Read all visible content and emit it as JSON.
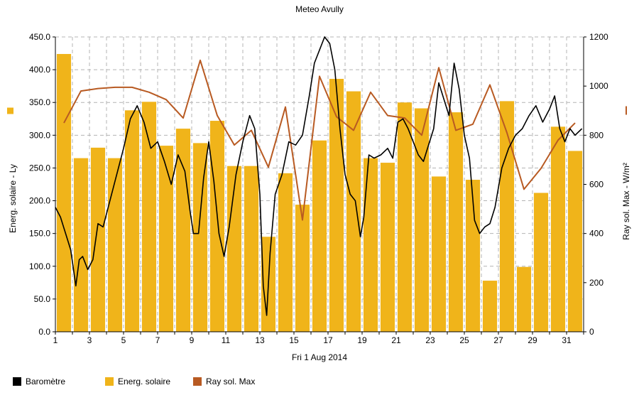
{
  "chart_data": {
    "type": "bar",
    "title": "Meteo  Avully",
    "xlabel": "Fri 1 Aug 2014",
    "ylabel_left": "Energ. solaire - Ly",
    "ylabel_right": "Ray sol. Max - W/m²",
    "ylim_left": [
      0,
      450
    ],
    "ylim_right": [
      0,
      1200
    ],
    "y_left_ticks": [
      "0.0",
      "50.0",
      "100.0",
      "150.0",
      "200.0",
      "250.0",
      "300.0",
      "350.0",
      "400.0",
      "450.0"
    ],
    "y_right_ticks": [
      "0",
      "200",
      "400",
      "600",
      "800",
      "1000",
      "1200"
    ],
    "x_ticks": [
      "1",
      "3",
      "5",
      "7",
      "9",
      "11",
      "13",
      "15",
      "17",
      "19",
      "21",
      "23",
      "25",
      "27",
      "29",
      "31"
    ],
    "days": [
      1,
      2,
      3,
      4,
      5,
      6,
      7,
      8,
      9,
      10,
      11,
      12,
      13,
      14,
      15,
      16,
      17,
      18,
      19,
      20,
      21,
      22,
      23,
      24,
      25,
      26,
      27,
      28,
      29,
      30,
      31
    ],
    "grid": true,
    "legend_position": "bottom",
    "series": [
      {
        "name": "Energ. solaire",
        "kind": "bar",
        "axis": "left",
        "color": "#f0b41a",
        "values": [
          424,
          265,
          281,
          265,
          338,
          351,
          284,
          310,
          288,
          322,
          253,
          253,
          145,
          242,
          194,
          292,
          386,
          367,
          265,
          258,
          350,
          341,
          237,
          335,
          232,
          78,
          352,
          99,
          212,
          313,
          276
        ]
      },
      {
        "name": "Ray sol. Max",
        "kind": "line",
        "axis": "right",
        "color": "#b85a22",
        "values": [
          850,
          980,
          990,
          995,
          995,
          975,
          945,
          870,
          1105,
          880,
          760,
          820,
          670,
          915,
          455,
          1040,
          875,
          820,
          975,
          880,
          870,
          800,
          1075,
          820,
          845,
          1005,
          810,
          580,
          665,
          780,
          850
        ]
      },
      {
        "name": "Baromètre",
        "kind": "line",
        "axis": "left",
        "color": "#000000",
        "x": [
          1.0,
          1.3,
          1.6,
          1.9,
          2.2,
          2.4,
          2.6,
          2.9,
          3.2,
          3.5,
          3.8,
          4.2,
          4.6,
          5.0,
          5.4,
          5.8,
          6.2,
          6.6,
          7.0,
          7.4,
          7.8,
          8.2,
          8.6,
          8.9,
          9.1,
          9.4,
          9.7,
          10.0,
          10.3,
          10.6,
          10.9,
          11.2,
          11.6,
          12.0,
          12.4,
          12.7,
          13.0,
          13.2,
          13.4,
          13.6,
          13.9,
          14.3,
          14.7,
          15.1,
          15.5,
          15.9,
          16.2,
          16.5,
          16.8,
          17.1,
          17.4,
          17.7,
          18.0,
          18.3,
          18.6,
          18.9,
          19.1,
          19.4,
          19.7,
          20.1,
          20.5,
          20.8,
          21.1,
          21.4,
          21.7,
          22.0,
          22.3,
          22.6,
          22.9,
          23.2,
          23.5,
          23.8,
          24.1,
          24.4,
          24.7,
          25.0,
          25.3,
          25.6,
          25.9,
          26.2,
          26.5,
          26.8,
          27.2,
          27.6,
          28.0,
          28.4,
          28.8,
          29.2,
          29.6,
          30.0,
          30.3,
          30.6,
          30.9,
          31.2,
          31.5,
          31.9
        ],
        "values": [
          190,
          175,
          150,
          125,
          70,
          110,
          115,
          95,
          110,
          165,
          160,
          200,
          240,
          280,
          325,
          345,
          320,
          280,
          290,
          260,
          225,
          270,
          245,
          185,
          150,
          150,
          235,
          290,
          230,
          150,
          115,
          160,
          240,
          290,
          330,
          310,
          210,
          70,
          25,
          120,
          210,
          240,
          290,
          285,
          300,
          360,
          410,
          430,
          450,
          440,
          400,
          310,
          240,
          210,
          200,
          145,
          175,
          270,
          265,
          270,
          280,
          265,
          320,
          325,
          310,
          290,
          270,
          260,
          285,
          310,
          380,
          355,
          330,
          410,
          370,
          300,
          265,
          170,
          150,
          160,
          165,
          190,
          250,
          280,
          300,
          310,
          330,
          345,
          320,
          340,
          360,
          310,
          290,
          310,
          300,
          310
        ]
      }
    ]
  },
  "legend": {
    "barometre_label": "Baromètre",
    "energ_label": "Energ. solaire",
    "ray_label": "Ray sol. Max"
  }
}
